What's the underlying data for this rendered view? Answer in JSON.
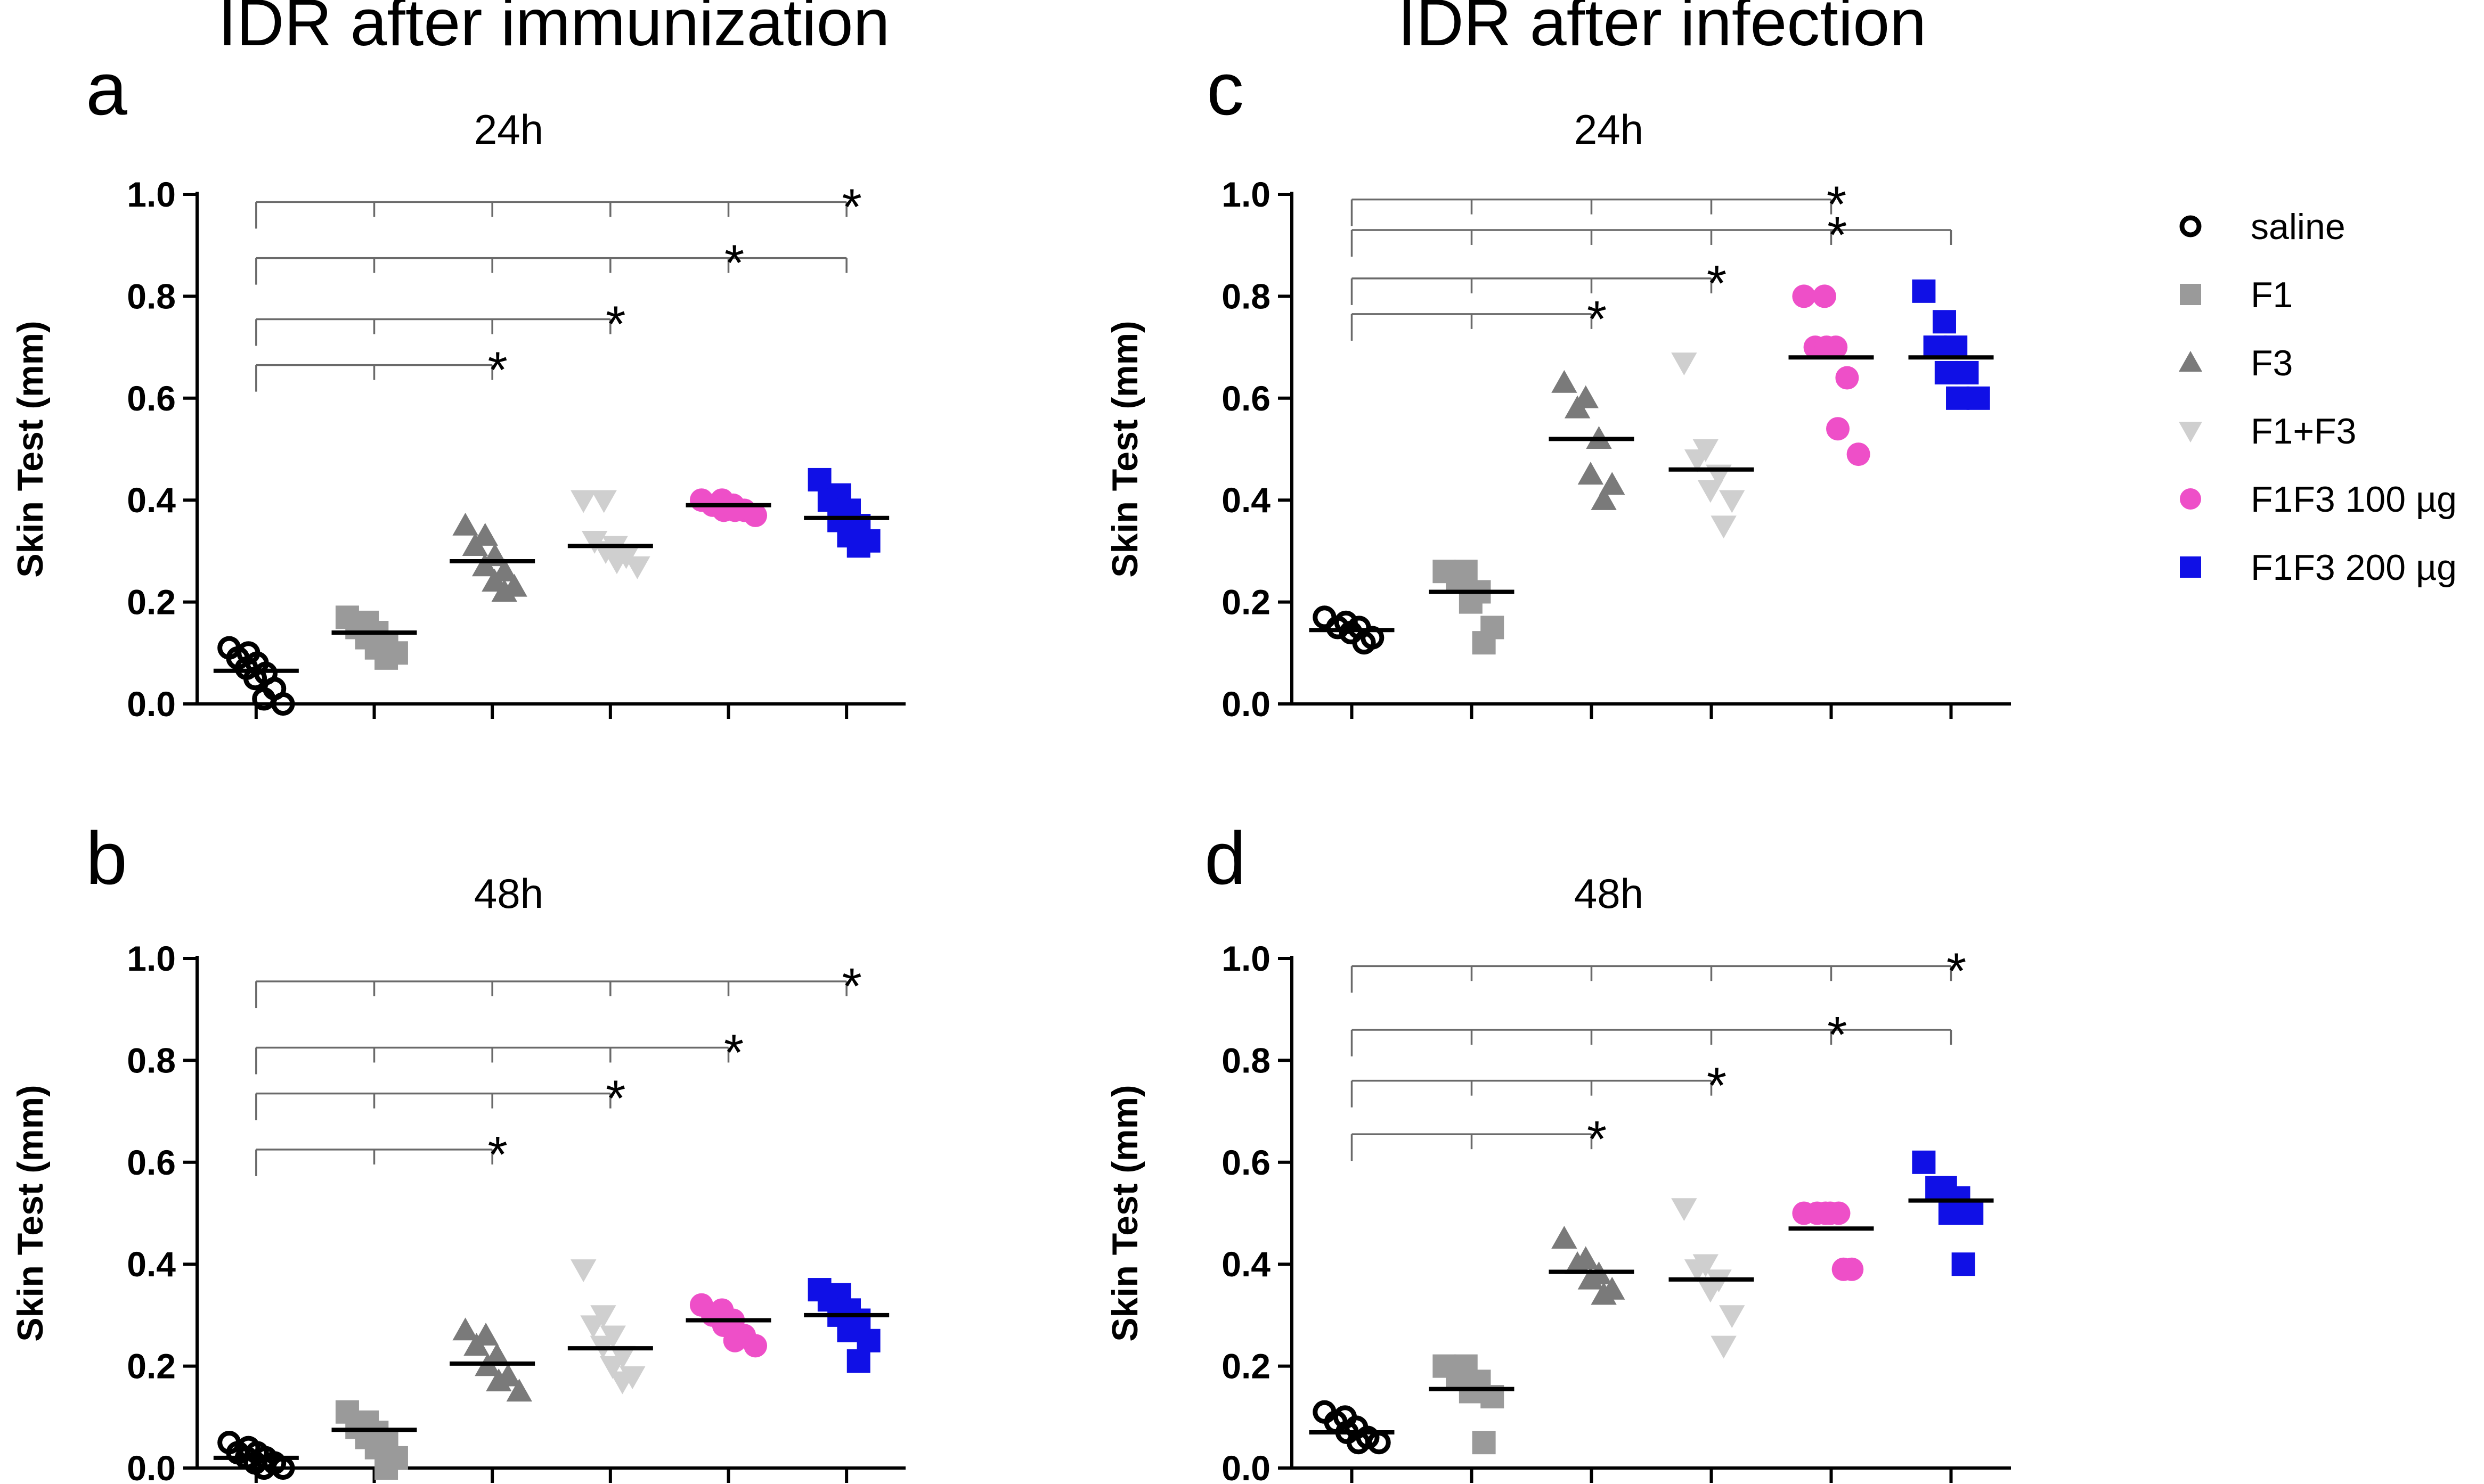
{
  "figure": {
    "column_titles": [
      "IDR after immunization",
      "IDR after infection"
    ]
  },
  "legend": {
    "items": [
      {
        "name": "saline",
        "color": "#000000",
        "marker": "circle-open"
      },
      {
        "name": "F1",
        "color": "#9a9a9a",
        "marker": "square"
      },
      {
        "name": "F3",
        "color": "#7a7a7a",
        "marker": "triangle-up"
      },
      {
        "name": "F1+F3",
        "color": "#cfcfcf",
        "marker": "triangle-down"
      },
      {
        "name": "F1F3 100 µg",
        "color": "#ee4fc8",
        "marker": "circle"
      },
      {
        "name": "F1F3 200 µg",
        "color": "#1010e6",
        "marker": "square"
      }
    ]
  },
  "chart_data": [
    {
      "panel": "a",
      "type": "scatter",
      "title": "24h",
      "ylabel": "Skin Test (mm)",
      "ylim": [
        0.0,
        1.0
      ],
      "yticks": [
        "0.0",
        "0.2",
        "0.4",
        "0.6",
        "0.8",
        "1.0"
      ],
      "groups": [
        "saline",
        "F1",
        "F3",
        "F1+F3",
        "F1F3 100 µg",
        "F1F3 200 µg"
      ],
      "series": [
        {
          "name": "saline",
          "values": [
            0.11,
            0.1,
            0.09,
            0.08,
            0.07,
            0.06,
            0.05,
            0.03,
            0.01,
            0.0
          ],
          "mean": 0.065
        },
        {
          "name": "F1",
          "values": [
            0.17,
            0.16,
            0.15,
            0.14,
            0.13,
            0.12,
            0.11,
            0.1,
            0.09
          ],
          "mean": 0.14
        },
        {
          "name": "F3",
          "values": [
            0.35,
            0.33,
            0.31,
            0.29,
            0.27,
            0.26,
            0.24,
            0.23,
            0.22
          ],
          "mean": 0.28
        },
        {
          "name": "F1+F3",
          "values": [
            0.4,
            0.4,
            0.32,
            0.31,
            0.3,
            0.29,
            0.28,
            0.27
          ],
          "mean": 0.31
        },
        {
          "name": "F1F3 100 µg",
          "values": [
            0.4,
            0.4,
            0.39,
            0.39,
            0.38,
            0.38,
            0.38,
            0.37
          ],
          "mean": 0.39
        },
        {
          "name": "F1F3 200 µg",
          "values": [
            0.44,
            0.41,
            0.4,
            0.38,
            0.36,
            0.35,
            0.33,
            0.32,
            0.31
          ],
          "mean": 0.365
        }
      ],
      "significance": [
        {
          "from": 0,
          "to": 5,
          "y": 0.985,
          "label": "*"
        },
        {
          "from": 0,
          "to": 5,
          "y": 0.875,
          "label": "*"
        },
        {
          "from": 0,
          "to": 3,
          "y": 0.755,
          "label": "*"
        },
        {
          "from": 0,
          "to": 2,
          "y": 0.665,
          "label": "*"
        }
      ]
    },
    {
      "panel": "b",
      "type": "scatter",
      "title": "48h",
      "ylabel": "Skin Test (mm)",
      "ylim": [
        0.0,
        1.0
      ],
      "yticks": [
        "0.0",
        "0.2",
        "0.4",
        "0.6",
        "0.8",
        "1.0"
      ],
      "groups": [
        "saline",
        "F1",
        "F3",
        "F1+F3",
        "F1F3 100 µg",
        "F1F3 200 µg"
      ],
      "series": [
        {
          "name": "saline",
          "values": [
            0.05,
            0.04,
            0.03,
            0.03,
            0.02,
            0.02,
            0.01,
            0.01,
            0.0,
            0.0
          ],
          "mean": 0.02
        },
        {
          "name": "F1",
          "values": [
            0.11,
            0.09,
            0.08,
            0.07,
            0.06,
            0.05,
            0.04,
            0.02,
            0.0
          ],
          "mean": 0.075
        },
        {
          "name": "F3",
          "values": [
            0.27,
            0.26,
            0.24,
            0.22,
            0.2,
            0.18,
            0.17,
            0.15
          ],
          "mean": 0.205
        },
        {
          "name": "F1+F3",
          "values": [
            0.39,
            0.3,
            0.28,
            0.26,
            0.24,
            0.22,
            0.2,
            0.18,
            0.17
          ],
          "mean": 0.235
        },
        {
          "name": "F1F3 100 µg",
          "values": [
            0.32,
            0.31,
            0.3,
            0.29,
            0.28,
            0.26,
            0.25,
            0.24
          ],
          "mean": 0.29
        },
        {
          "name": "F1F3 200 µg",
          "values": [
            0.35,
            0.34,
            0.33,
            0.31,
            0.3,
            0.29,
            0.27,
            0.25,
            0.21
          ],
          "mean": 0.3
        }
      ],
      "significance": [
        {
          "from": 0,
          "to": 5,
          "y": 0.955,
          "label": "*"
        },
        {
          "from": 0,
          "to": 4,
          "y": 0.825,
          "label": "*"
        },
        {
          "from": 0,
          "to": 3,
          "y": 0.735,
          "label": "*"
        },
        {
          "from": 0,
          "to": 2,
          "y": 0.625,
          "label": "*"
        }
      ]
    },
    {
      "panel": "c",
      "type": "scatter",
      "title": "24h",
      "ylabel": "Skin Test (mm)",
      "ylim": [
        0.0,
        1.0
      ],
      "yticks": [
        "0.0",
        "0.2",
        "0.4",
        "0.6",
        "0.8",
        "1.0"
      ],
      "groups": [
        "saline",
        "F1",
        "F3",
        "F1+F3",
        "F1F3 100 µg",
        "F1F3 200 µg"
      ],
      "series": [
        {
          "name": "saline",
          "values": [
            0.17,
            0.16,
            0.15,
            0.15,
            0.14,
            0.13,
            0.12
          ],
          "mean": 0.145
        },
        {
          "name": "F1",
          "values": [
            0.26,
            0.26,
            0.24,
            0.22,
            0.2,
            0.15,
            0.12
          ],
          "mean": 0.22
        },
        {
          "name": "F3",
          "values": [
            0.63,
            0.6,
            0.58,
            0.52,
            0.45,
            0.43,
            0.4
          ],
          "mean": 0.52
        },
        {
          "name": "F1+F3",
          "values": [
            0.67,
            0.5,
            0.48,
            0.45,
            0.42,
            0.4,
            0.35
          ],
          "mean": 0.46
        },
        {
          "name": "F1F3 100 µg",
          "values": [
            0.8,
            0.8,
            0.7,
            0.7,
            0.7,
            0.64,
            0.54,
            0.49
          ],
          "mean": 0.68
        },
        {
          "name": "F1F3 200 µg",
          "values": [
            0.81,
            0.75,
            0.7,
            0.7,
            0.65,
            0.65,
            0.6,
            0.6
          ],
          "mean": 0.68
        }
      ],
      "significance": [
        {
          "from": 0,
          "to": 4,
          "y": 0.99,
          "label": "*"
        },
        {
          "from": 0,
          "to": 5,
          "y": 0.93,
          "label": "*"
        },
        {
          "from": 0,
          "to": 3,
          "y": 0.835,
          "label": "*"
        },
        {
          "from": 0,
          "to": 2,
          "y": 0.765,
          "label": "*"
        }
      ]
    },
    {
      "panel": "d",
      "type": "scatter",
      "title": "48h",
      "ylabel": "Skin Test (mm)",
      "ylim": [
        0.0,
        1.0
      ],
      "yticks": [
        "0.0",
        "0.2",
        "0.4",
        "0.6",
        "0.8",
        "1.0"
      ],
      "groups": [
        "saline",
        "F1",
        "F3",
        "F1+F3",
        "F1F3 100 µg",
        "F1F3 200 µg"
      ],
      "series": [
        {
          "name": "saline",
          "values": [
            0.11,
            0.1,
            0.09,
            0.08,
            0.07,
            0.06,
            0.05,
            0.05
          ],
          "mean": 0.07
        },
        {
          "name": "F1",
          "values": [
            0.2,
            0.2,
            0.18,
            0.17,
            0.15,
            0.14,
            0.05
          ],
          "mean": 0.155
        },
        {
          "name": "F3",
          "values": [
            0.45,
            0.41,
            0.4,
            0.38,
            0.37,
            0.35,
            0.34
          ],
          "mean": 0.385
        },
        {
          "name": "F1+F3",
          "values": [
            0.51,
            0.4,
            0.39,
            0.37,
            0.35,
            0.3,
            0.24
          ],
          "mean": 0.37
        },
        {
          "name": "F1F3 100 µg",
          "values": [
            0.5,
            0.5,
            0.5,
            0.5,
            0.5,
            0.39,
            0.39
          ],
          "mean": 0.47
        },
        {
          "name": "F1F3 200 µg",
          "values": [
            0.6,
            0.55,
            0.55,
            0.53,
            0.5,
            0.5,
            0.4
          ],
          "mean": 0.525
        }
      ],
      "significance": [
        {
          "from": 0,
          "to": 5,
          "y": 0.985,
          "label": "*"
        },
        {
          "from": 0,
          "to": 5,
          "y": 0.86,
          "label": "*"
        },
        {
          "from": 0,
          "to": 3,
          "y": 0.76,
          "label": "*"
        },
        {
          "from": 0,
          "to": 2,
          "y": 0.655,
          "label": "*"
        }
      ]
    }
  ]
}
